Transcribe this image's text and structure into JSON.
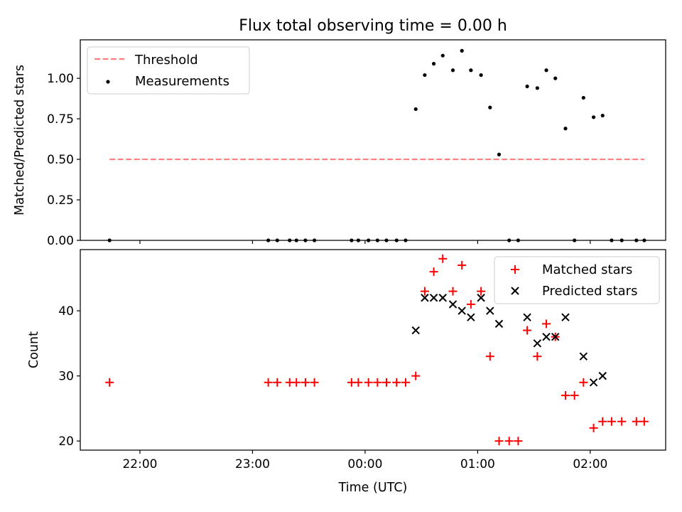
{
  "chart_data": {
    "title": "Flux total observing time = 0.00 h",
    "xlabel": "Time (UTC)",
    "x_ticks": [
      "22:00",
      "23:00",
      "00:00",
      "01:00",
      "02:00"
    ],
    "x_tick_hours": [
      22,
      23,
      24,
      25,
      26
    ],
    "xlim_hours": [
      21.47,
      26.67
    ],
    "x_units": "hours from 00:00 of the day before (24 = 00:00, 25 = 01:00)",
    "panels": [
      {
        "type": "scatter",
        "ylabel": "Matched/Predicted stars",
        "ylim": [
          0,
          1.2375
        ],
        "y_ticks": [
          0.0,
          0.25,
          0.5,
          0.75,
          1.0
        ],
        "y_tick_labels": [
          "0.00",
          "0.25",
          "0.50",
          "0.75",
          "1.00"
        ],
        "legend_position": "upper-left",
        "threshold": {
          "name": "Threshold",
          "value": 0.5,
          "x_range": [
            21.73,
            26.48
          ],
          "color": "#ff0000",
          "alpha": 0.5,
          "style": "dashed"
        },
        "series": [
          {
            "name": "Measurements",
            "marker": "dot",
            "color": "#000000",
            "x": [
              21.73,
              23.14,
              23.22,
              23.33,
              23.39,
              23.47,
              23.55,
              23.88,
              23.94,
              24.03,
              24.11,
              24.19,
              24.28,
              24.36,
              24.45,
              24.53,
              24.61,
              24.69,
              24.78,
              24.86,
              24.94,
              25.03,
              25.11,
              25.19,
              25.28,
              25.36,
              25.44,
              25.53,
              25.61,
              25.69,
              25.78,
              25.86,
              25.94,
              26.03,
              26.11,
              26.19,
              26.28,
              26.41,
              26.48
            ],
            "y": [
              0.0,
              0.0,
              0.0,
              0.0,
              0.0,
              0.0,
              0.0,
              0.0,
              0.0,
              0.0,
              0.0,
              0.0,
              0.0,
              0.0,
              0.81,
              1.02,
              1.09,
              1.14,
              1.05,
              1.17,
              1.05,
              1.02,
              0.82,
              0.53,
              0.0,
              0.0,
              0.95,
              0.94,
              1.05,
              1.0,
              0.69,
              0.0,
              0.88,
              0.76,
              0.77,
              0.0,
              0.0,
              0.0,
              0.0
            ]
          }
        ]
      },
      {
        "type": "scatter",
        "ylabel": "Count",
        "ylim": [
          18.6,
          49.4
        ],
        "y_ticks": [
          20,
          30,
          40
        ],
        "y_tick_labels": [
          "20",
          "30",
          "40"
        ],
        "legend_position": "upper-right",
        "series": [
          {
            "name": "Matched stars",
            "marker": "plus",
            "color": "#ff0000",
            "x": [
              21.73,
              23.14,
              23.22,
              23.33,
              23.39,
              23.47,
              23.55,
              23.88,
              23.94,
              24.03,
              24.11,
              24.19,
              24.28,
              24.36,
              24.45,
              24.53,
              24.61,
              24.69,
              24.78,
              24.86,
              24.94,
              25.03,
              25.11,
              25.19,
              25.28,
              25.36,
              25.44,
              25.53,
              25.61,
              25.69,
              25.78,
              25.86,
              25.94,
              26.03,
              26.11,
              26.19,
              26.28,
              26.41,
              26.48
            ],
            "y": [
              29,
              29,
              29,
              29,
              29,
              29,
              29,
              29,
              29,
              29,
              29,
              29,
              29,
              29,
              30,
              43,
              46,
              48,
              43,
              47,
              41,
              43,
              33,
              20,
              20,
              20,
              37,
              33,
              38,
              36,
              27,
              27,
              29,
              22,
              23,
              23,
              23,
              23,
              23
            ]
          },
          {
            "name": "Predicted stars",
            "marker": "x",
            "color": "#000000",
            "x": [
              24.45,
              24.53,
              24.61,
              24.69,
              24.78,
              24.86,
              24.94,
              25.03,
              25.11,
              25.19,
              25.44,
              25.53,
              25.61,
              25.69,
              25.78,
              25.94,
              26.03,
              26.11
            ],
            "y": [
              37,
              42,
              42,
              42,
              41,
              40,
              39,
              42,
              40,
              38,
              39,
              35,
              36,
              36,
              39,
              33,
              29,
              30
            ]
          }
        ]
      }
    ]
  }
}
